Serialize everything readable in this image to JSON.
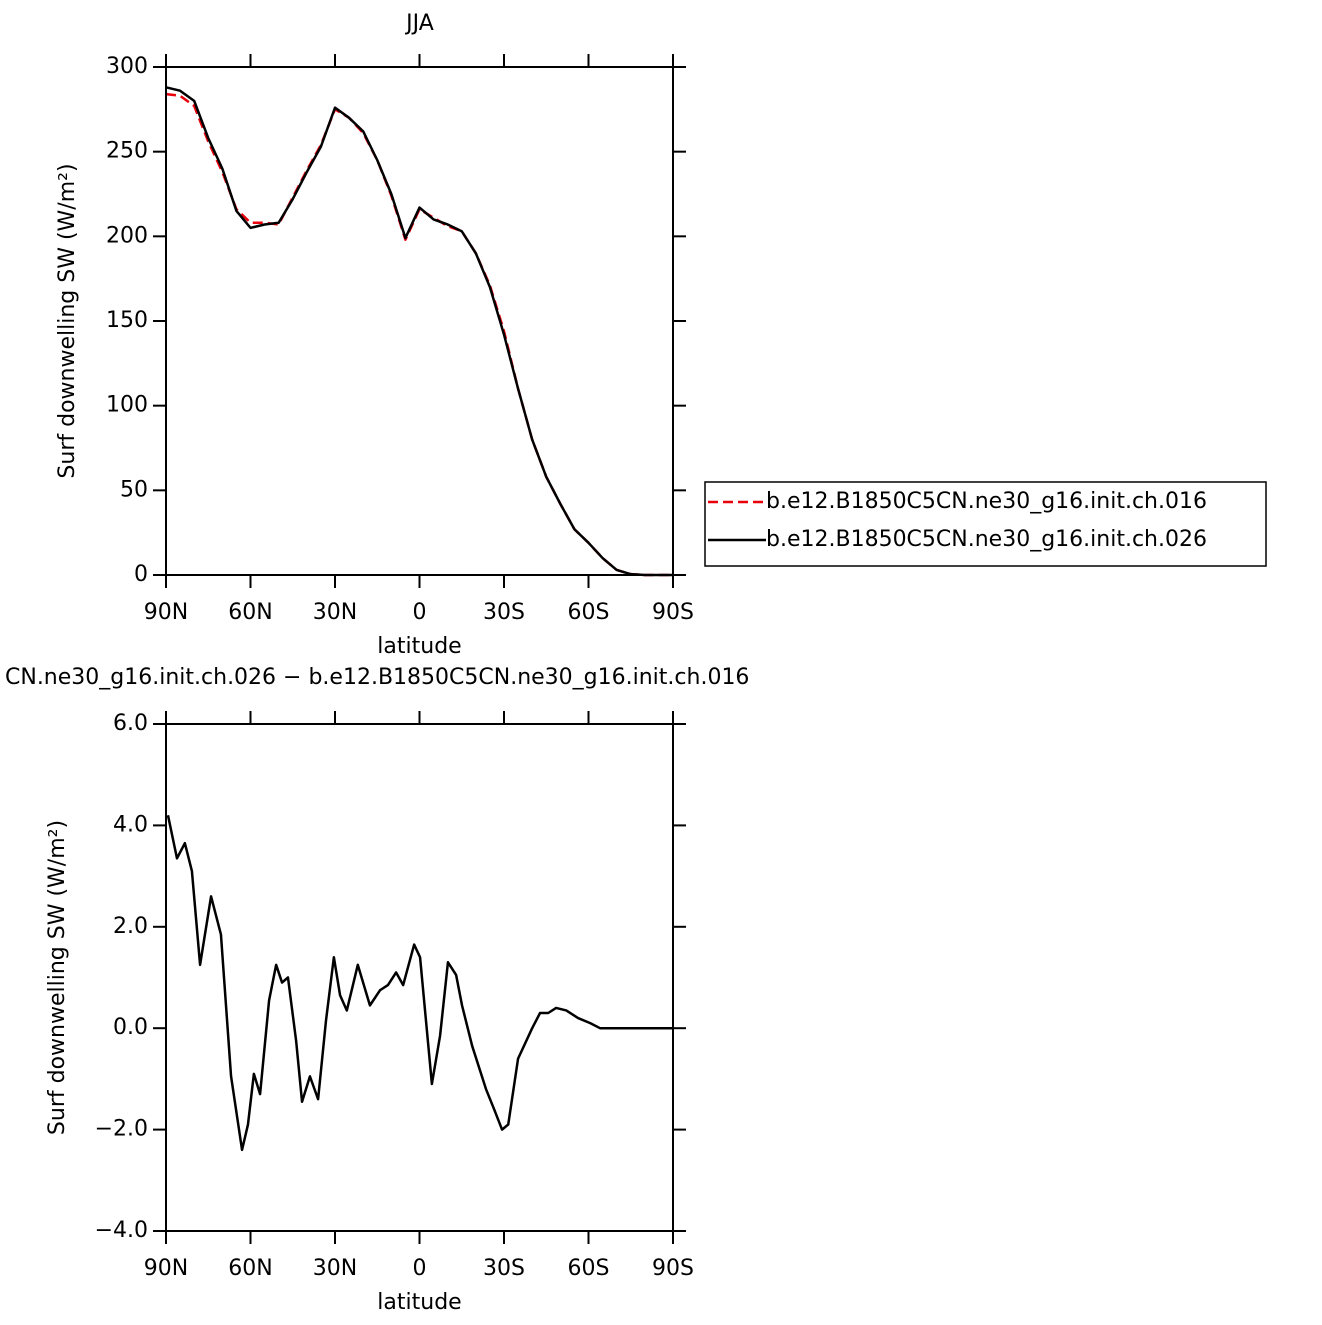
{
  "chart_data": [
    {
      "type": "line",
      "title": "JJA",
      "x_label": "latitude",
      "y_label": "Surf downwelling SW (W/m²)",
      "x": [
        90,
        85,
        80,
        75,
        70,
        65,
        60,
        55,
        50,
        45,
        40,
        35,
        30,
        25,
        20,
        15,
        10,
        5,
        0,
        -5,
        -10,
        -15,
        -20,
        -25,
        -30,
        -35,
        -40,
        -45,
        -50,
        -55,
        -60,
        -65,
        -70,
        -75,
        -80,
        -85,
        -90
      ],
      "series": [
        {
          "name": "b.e12.B1850C5CN.ne30_g16.init.ch.016",
          "color": "#e8000b",
          "line_style": "dashed",
          "values": [
            284,
            283,
            277,
            256,
            238,
            216,
            208,
            208,
            207,
            223,
            239,
            254,
            275,
            270,
            261,
            245,
            224,
            198,
            216,
            211,
            206,
            203,
            190,
            171,
            144,
            110,
            80,
            58,
            42,
            27,
            19,
            10,
            3,
            0.5,
            0,
            0,
            0
          ]
        },
        {
          "name": "b.e12.B1850C5CN.ne30_g16.init.ch.026",
          "color": "#000000",
          "line_style": "solid",
          "values": [
            288,
            286,
            280,
            258,
            240,
            215,
            205,
            207,
            208,
            222,
            238,
            253,
            276,
            270,
            262,
            245,
            225,
            199,
            217,
            210,
            207,
            203,
            190,
            170,
            142,
            110,
            80,
            58,
            42,
            27,
            19,
            10,
            3,
            0.5,
            0,
            0,
            0
          ]
        }
      ],
      "xlim": [
        90,
        -90
      ],
      "xticks": [
        {
          "value": 90,
          "label": "90N"
        },
        {
          "value": 60,
          "label": "60N"
        },
        {
          "value": 30,
          "label": "30N"
        },
        0,
        {
          "value": -30,
          "label": "30S"
        },
        {
          "value": -60,
          "label": "60S"
        },
        {
          "value": -90,
          "label": "90S"
        }
      ],
      "ylim": [
        0,
        300
      ],
      "yticks": [
        0,
        50,
        100,
        150,
        200,
        250,
        300
      ]
    },
    {
      "type": "line",
      "title": "CN.ne30_g16.init.ch.026 − b.e12.B1850C5CN.ne30_g16.init.ch.016",
      "x_label": "latitude",
      "y_label": "Surf downwelling SW (W/m²)",
      "x": [
        89.3,
        86.1,
        83.3,
        80.8,
        77.9,
        74.0,
        70.5,
        66.9,
        63.0,
        60.9,
        58.8,
        56.6,
        53.4,
        50.9,
        48.8,
        46.7,
        43.8,
        41.7,
        38.9,
        36.0,
        33.2,
        30.4,
        28.2,
        25.8,
        21.9,
        17.6,
        14.0,
        11.2,
        8.3,
        5.8,
        1.9,
        -0.2,
        -4.4,
        -7.3,
        -10.1,
        -13.0,
        -15.1,
        -18.7,
        -23.6,
        -26.5,
        -29.3,
        -31.5,
        -35.0,
        -40.0,
        -42.8,
        -45.7,
        -48.5,
        -52.1,
        -56.3,
        -60.6,
        -64.1,
        -71.2,
        -90
      ],
      "series": [
        {
          "color": "#000000",
          "line_style": "solid",
          "values": [
            4.2,
            3.35,
            3.65,
            3.1,
            1.25,
            2.6,
            1.85,
            -0.95,
            -2.4,
            -1.9,
            -0.9,
            -1.3,
            0.55,
            1.25,
            0.9,
            1.0,
            -0.25,
            -1.45,
            -0.95,
            -1.4,
            0.15,
            1.4,
            0.65,
            0.35,
            1.25,
            0.45,
            0.75,
            0.85,
            1.1,
            0.85,
            1.65,
            1.4,
            -1.1,
            -0.15,
            1.3,
            1.05,
            0.45,
            -0.35,
            -1.2,
            -1.6,
            -2.0,
            -1.9,
            -0.6,
            0.0,
            0.3,
            0.3,
            0.4,
            0.35,
            0.2,
            0.1,
            0.0,
            0.0,
            0.0
          ]
        }
      ],
      "xlim": [
        90,
        -90
      ],
      "xticks": [
        {
          "value": 90,
          "label": "90N"
        },
        {
          "value": 60,
          "label": "60N"
        },
        {
          "value": 30,
          "label": "30N"
        },
        0,
        {
          "value": -30,
          "label": "30S"
        },
        {
          "value": -60,
          "label": "60S"
        },
        {
          "value": -90,
          "label": "90S"
        }
      ],
      "ylim": [
        -4,
        6
      ],
      "yticks": [
        {
          "value": -4,
          "label": "−4.0"
        },
        {
          "value": -2,
          "label": "−2.0"
        },
        {
          "value": 0,
          "label": "0.0"
        },
        {
          "value": 2,
          "label": "2.0"
        },
        {
          "value": 4,
          "label": "4.0"
        },
        {
          "value": 6,
          "label": "6.0"
        }
      ]
    }
  ]
}
